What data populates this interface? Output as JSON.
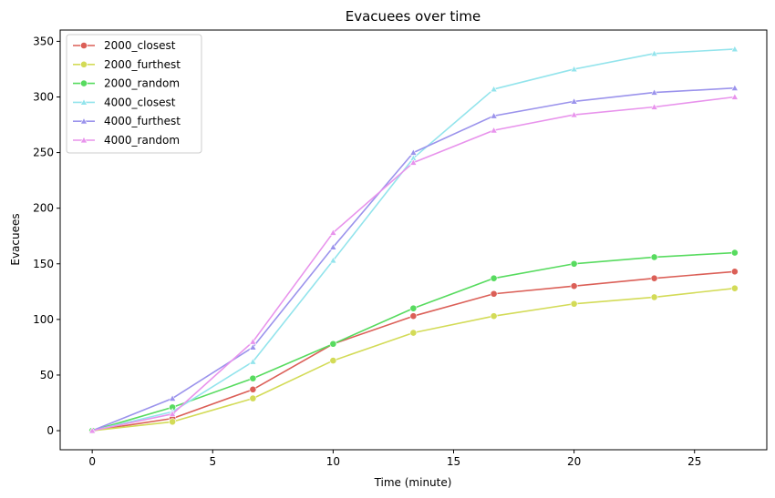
{
  "chart_data": {
    "type": "line",
    "title": "Evacuees over time",
    "xlabel": "Time (minute)",
    "ylabel": "Evacuees",
    "xlim": [
      -1.33,
      28.0
    ],
    "ylim": [
      -17.15,
      360.15
    ],
    "xticks": [
      0,
      5,
      10,
      15,
      20,
      25
    ],
    "yticks": [
      0,
      50,
      100,
      150,
      200,
      250,
      300,
      350
    ],
    "grid": false,
    "legend_position": "top-left",
    "x": [
      0,
      3.33,
      6.67,
      10,
      13.33,
      16.67,
      20,
      23.33,
      26.67
    ],
    "series": [
      {
        "name": "2000_closest",
        "color": "#db5f57",
        "marker": "circle",
        "values": [
          0,
          11,
          37,
          78,
          103,
          123,
          130,
          137,
          143
        ]
      },
      {
        "name": "2000_furthest",
        "color": "#d3db57",
        "marker": "circle",
        "values": [
          0,
          8,
          29,
          63,
          88,
          103,
          114,
          120,
          128
        ]
      },
      {
        "name": "2000_random",
        "color": "#57db5f",
        "marker": "circle",
        "values": [
          0,
          21,
          47,
          78,
          110,
          137,
          150,
          156,
          160
        ]
      },
      {
        "name": "4000_closest",
        "color": "#93e4ec",
        "marker": "triangle",
        "values": [
          0,
          17,
          62,
          153,
          245,
          307,
          325,
          339,
          343
        ]
      },
      {
        "name": "4000_furthest",
        "color": "#9b93ec",
        "marker": "triangle",
        "values": [
          0,
          29,
          75,
          165,
          250,
          283,
          296,
          304,
          308
        ]
      },
      {
        "name": "4000_random",
        "color": "#e893ec",
        "marker": "triangle",
        "values": [
          0,
          15,
          80,
          178,
          241,
          270,
          284,
          291,
          300
        ]
      }
    ]
  }
}
